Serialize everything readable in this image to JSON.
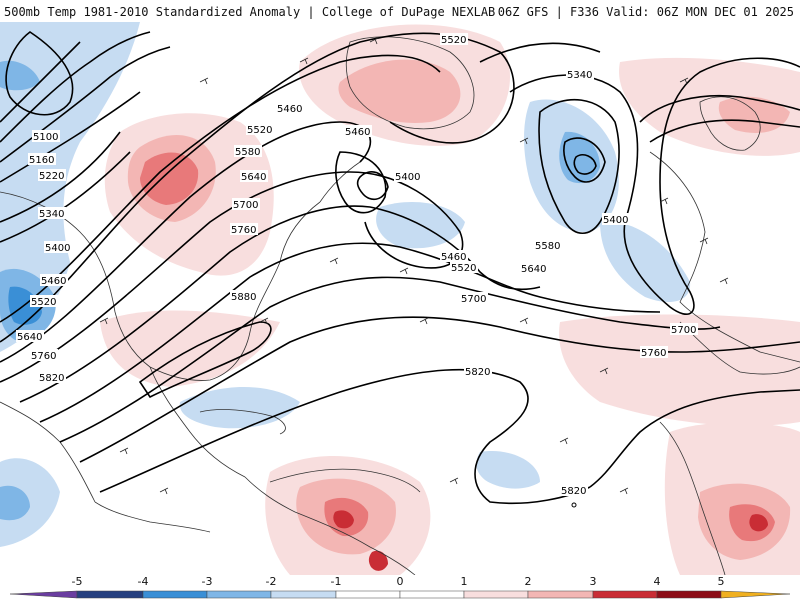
{
  "header": {
    "title_left": "500mb Temp 1981-2010 Standardized Anomaly | College of DuPage NEXLAB",
    "title_right": "06Z GFS | F336 Valid: 06Z MON DEC 01 2025"
  },
  "colors": {
    "neg5": "#6a3da0",
    "neg4": "#26407f",
    "neg3": "#3a8fd6",
    "neg2": "#7fb6e6",
    "neg1": "#c6dcf2",
    "zero": "#ffffff",
    "pos1": "#f8dede",
    "pos2": "#f3b6b4",
    "pos3": "#e8797a",
    "pos4": "#c92d35",
    "pos5": "#8c0d18",
    "pos6": "#f0b020",
    "contour": "#000000",
    "coastline": "#333333"
  },
  "legend": {
    "ticks": [
      "-5",
      "-4",
      "-3",
      "-2",
      "-1",
      "0",
      "1",
      "2",
      "3",
      "4",
      "5"
    ]
  },
  "contour_labels": [
    "5520",
    "5460",
    "5520",
    "5580",
    "5640",
    "5700",
    "5760",
    "5880",
    "5460",
    "5400",
    "5460",
    "5520",
    "5580",
    "5640",
    "5700",
    "5760",
    "5820",
    "5820",
    "5340",
    "5400",
    "5100",
    "5160",
    "5220",
    "5340",
    "5400",
    "5460",
    "5520",
    "5640",
    "5760",
    "5820",
    "5700"
  ]
}
